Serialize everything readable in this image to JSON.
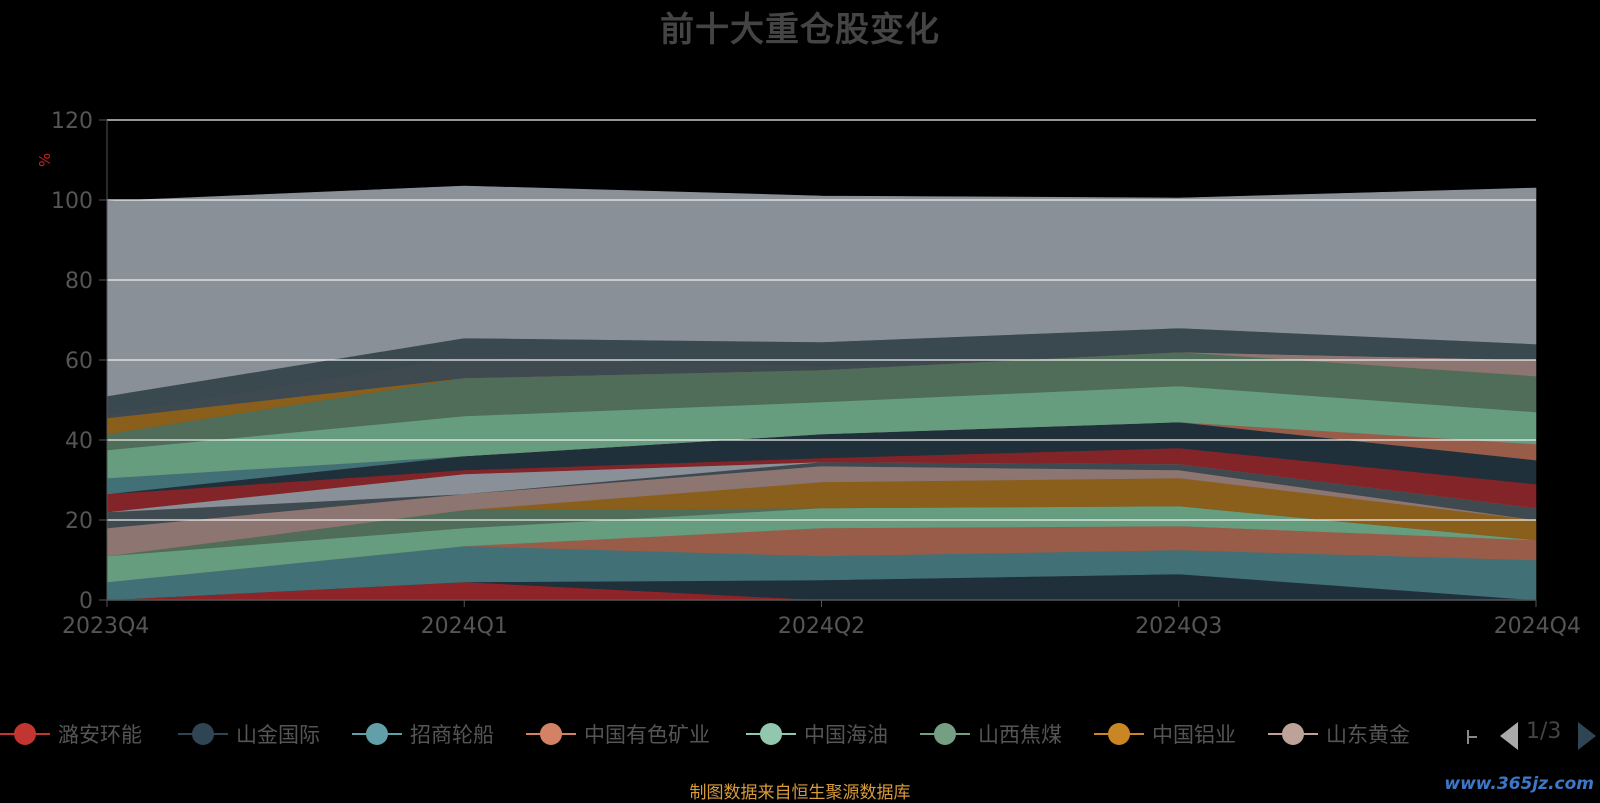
{
  "chart_data": {
    "type": "area",
    "title": "前十大重仓股变化",
    "ylabel": "%",
    "categories": [
      "2023Q4",
      "2024Q1",
      "2024Q2",
      "2024Q3",
      "2024Q4"
    ],
    "ylim": [
      0,
      120
    ],
    "y_ticks": [
      0,
      20,
      40,
      60,
      80,
      100,
      120
    ],
    "grid": true,
    "legend_position": "bottom",
    "series": [
      {
        "name": "",
        "color": "#8e2427",
        "values": [
          0,
          4.5,
          0,
          0,
          0
        ]
      },
      {
        "name": "",
        "color": "#20303a",
        "values": [
          0,
          0,
          5,
          6.5,
          0
        ]
      },
      {
        "name": "",
        "color": "#417176",
        "values": [
          4.5,
          9,
          6,
          6,
          10
        ]
      },
      {
        "name": "",
        "color": "#985c49",
        "values": [
          0,
          0,
          7,
          6,
          5
        ]
      },
      {
        "name": "",
        "color": "#669d7f",
        "values": [
          6.5,
          4.5,
          5,
          5,
          0
        ]
      },
      {
        "name": "",
        "color": "#4f6d58",
        "values": [
          0,
          4.5,
          0,
          0,
          0
        ]
      },
      {
        "name": "",
        "color": "#8a5e1b",
        "values": [
          0,
          0,
          6.5,
          7,
          5
        ]
      },
      {
        "name": "",
        "color": "#8d7571",
        "values": [
          7,
          4,
          4,
          2,
          0
        ]
      },
      {
        "name": "",
        "color": "#3e4950",
        "values": [
          4,
          0,
          1,
          1.5,
          3
        ]
      },
      {
        "name": "",
        "color": "#8a9098",
        "values": [
          0,
          5,
          0,
          0,
          0
        ]
      },
      {
        "name": "",
        "color": "#832428",
        "values": [
          4.5,
          1,
          1,
          4,
          6
        ]
      },
      {
        "name": "",
        "color": "#20303a",
        "values": [
          0,
          3.5,
          6,
          6.5,
          6
        ]
      },
      {
        "name": "",
        "color": "#417176",
        "values": [
          4,
          0,
          0,
          0,
          0
        ]
      },
      {
        "name": "",
        "color": "#985c49",
        "values": [
          0,
          0,
          0,
          0,
          4
        ]
      },
      {
        "name": "",
        "color": "#669d7f",
        "values": [
          7,
          10,
          8,
          9,
          8
        ]
      },
      {
        "name": "",
        "color": "#4f6d58",
        "values": [
          4,
          9.5,
          8,
          8.5,
          9
        ]
      },
      {
        "name": "",
        "color": "#8a5e1b",
        "values": [
          4,
          0,
          0,
          0,
          0
        ]
      },
      {
        "name": "",
        "color": "#8d7571",
        "values": [
          0,
          0,
          0,
          0,
          4
        ]
      },
      {
        "name": "",
        "color": "#3e4950",
        "values": [
          1,
          5.5,
          1,
          0,
          0
        ]
      },
      {
        "name": "",
        "color": "#3a4950",
        "values": [
          4.5,
          4.5,
          6,
          6,
          4
        ]
      },
      {
        "name": "",
        "color": "#8a9098",
        "values": [
          48.7,
          38,
          36.5,
          32.5,
          39
        ]
      }
    ]
  },
  "legend": {
    "items": [
      {
        "label": "潞安环能",
        "color": "#c23531"
      },
      {
        "label": "山金国际",
        "color": "#2f4554"
      },
      {
        "label": "招商轮船",
        "color": "#61a0a8"
      },
      {
        "label": "中国有色矿业",
        "color": "#d48265"
      },
      {
        "label": "中国海油",
        "color": "#91c7ae"
      },
      {
        "label": "山西焦煤",
        "color": "#749f83"
      },
      {
        "label": "中国铝业",
        "color": "#ca8622"
      },
      {
        "label": "山东黄金",
        "color": "#bda29a"
      }
    ],
    "page_label": "1/3"
  },
  "source_note": "制图数据来自恒生聚源数据库",
  "watermark": "www.365jz.com"
}
